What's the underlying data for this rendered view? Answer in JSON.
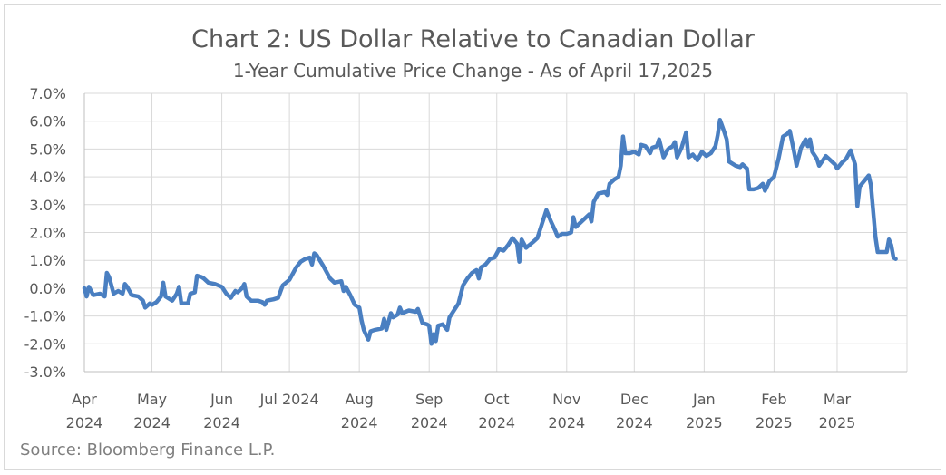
{
  "chart_data": {
    "type": "line",
    "title": "Chart 2: US Dollar Relative to Canadian Dollar",
    "subtitle": "1-Year Cumulative Price Change - As of April 17,2025",
    "source": "Source: Bloomberg Finance L.P.",
    "ylim": [
      -3.0,
      7.0
    ],
    "ytick_values": [
      -3,
      -2,
      -1,
      0,
      1,
      2,
      3,
      4,
      5,
      6,
      7
    ],
    "ytick_labels": [
      "-3.0%",
      "-2.0%",
      "-1.0%",
      "0.0%",
      "1.0%",
      "2.0%",
      "3.0%",
      "4.0%",
      "5.0%",
      "6.0%",
      "7.0%"
    ],
    "xlim": [
      "2024-04-01",
      "2025-04-01"
    ],
    "xticks": [
      {
        "date": "2024-04-01",
        "line1": "Apr",
        "line2": "2024"
      },
      {
        "date": "2024-05-01",
        "line1": "May",
        "line2": "2024"
      },
      {
        "date": "2024-06-01",
        "line1": "Jun",
        "line2": "2024"
      },
      {
        "date": "2024-07-01",
        "line1": "Jul 2024",
        "line2": ""
      },
      {
        "date": "2024-08-01",
        "line1": "Aug",
        "line2": "2024"
      },
      {
        "date": "2024-09-01",
        "line1": "Sep",
        "line2": "2024"
      },
      {
        "date": "2024-10-01",
        "line1": "Oct",
        "line2": "2024"
      },
      {
        "date": "2024-11-01",
        "line1": "Nov",
        "line2": "2024"
      },
      {
        "date": "2024-12-01",
        "line1": "Dec",
        "line2": "2024"
      },
      {
        "date": "2025-01-01",
        "line1": "Jan",
        "line2": "2025"
      },
      {
        "date": "2025-02-01",
        "line1": "Feb",
        "line2": "2025"
      },
      {
        "date": "2025-03-01",
        "line1": "Mar",
        "line2": "2025"
      }
    ],
    "grid": true,
    "series": [
      {
        "color": "#4a7fc1",
        "points": [
          [
            "2024-04-01",
            0.0
          ],
          [
            "2024-04-02",
            -0.3
          ],
          [
            "2024-04-03",
            0.05
          ],
          [
            "2024-04-05",
            -0.25
          ],
          [
            "2024-04-08",
            -0.2
          ],
          [
            "2024-04-10",
            -0.3
          ],
          [
            "2024-04-11",
            0.55
          ],
          [
            "2024-04-12",
            0.4
          ],
          [
            "2024-04-14",
            -0.2
          ],
          [
            "2024-04-16",
            -0.1
          ],
          [
            "2024-04-18",
            -0.2
          ],
          [
            "2024-04-19",
            0.15
          ],
          [
            "2024-04-20",
            0.05
          ],
          [
            "2024-04-22",
            -0.25
          ],
          [
            "2024-04-25",
            -0.3
          ],
          [
            "2024-04-27",
            -0.45
          ],
          [
            "2024-04-28",
            -0.7
          ],
          [
            "2024-04-30",
            -0.55
          ],
          [
            "2024-05-01",
            -0.6
          ],
          [
            "2024-05-03",
            -0.5
          ],
          [
            "2024-05-05",
            -0.3
          ],
          [
            "2024-05-06",
            0.2
          ],
          [
            "2024-05-07",
            -0.3
          ],
          [
            "2024-05-10",
            -0.45
          ],
          [
            "2024-05-12",
            -0.2
          ],
          [
            "2024-05-13",
            0.05
          ],
          [
            "2024-05-14",
            -0.55
          ],
          [
            "2024-05-17",
            -0.55
          ],
          [
            "2024-05-18",
            -0.2
          ],
          [
            "2024-05-20",
            -0.15
          ],
          [
            "2024-05-21",
            0.45
          ],
          [
            "2024-05-23",
            0.4
          ],
          [
            "2024-05-24",
            0.35
          ],
          [
            "2024-05-26",
            0.2
          ],
          [
            "2024-05-29",
            0.15
          ],
          [
            "2024-06-01",
            0.05
          ],
          [
            "2024-06-03",
            -0.2
          ],
          [
            "2024-06-05",
            -0.35
          ],
          [
            "2024-06-07",
            -0.1
          ],
          [
            "2024-06-08",
            -0.15
          ],
          [
            "2024-06-10",
            0.0
          ],
          [
            "2024-06-11",
            0.15
          ],
          [
            "2024-06-12",
            -0.3
          ],
          [
            "2024-06-14",
            -0.45
          ],
          [
            "2024-06-17",
            -0.45
          ],
          [
            "2024-06-19",
            -0.5
          ],
          [
            "2024-06-20",
            -0.6
          ],
          [
            "2024-06-21",
            -0.45
          ],
          [
            "2024-06-24",
            -0.4
          ],
          [
            "2024-06-26",
            -0.35
          ],
          [
            "2024-06-28",
            0.1
          ],
          [
            "2024-07-01",
            0.3
          ],
          [
            "2024-07-04",
            0.75
          ],
          [
            "2024-07-06",
            0.95
          ],
          [
            "2024-07-08",
            1.05
          ],
          [
            "2024-07-10",
            1.1
          ],
          [
            "2024-07-11",
            0.85
          ],
          [
            "2024-07-12",
            1.25
          ],
          [
            "2024-07-13",
            1.2
          ],
          [
            "2024-07-16",
            0.8
          ],
          [
            "2024-07-19",
            0.35
          ],
          [
            "2024-07-21",
            0.2
          ],
          [
            "2024-07-24",
            0.25
          ],
          [
            "2024-07-25",
            -0.1
          ],
          [
            "2024-07-26",
            0.05
          ],
          [
            "2024-07-28",
            -0.25
          ],
          [
            "2024-07-30",
            -0.6
          ],
          [
            "2024-08-01",
            -0.7
          ],
          [
            "2024-08-02",
            -1.15
          ],
          [
            "2024-08-03",
            -1.5
          ],
          [
            "2024-08-05",
            -1.85
          ],
          [
            "2024-08-06",
            -1.55
          ],
          [
            "2024-08-08",
            -1.5
          ],
          [
            "2024-08-11",
            -1.45
          ],
          [
            "2024-08-12",
            -1.1
          ],
          [
            "2024-08-13",
            -1.5
          ],
          [
            "2024-08-15",
            -0.9
          ],
          [
            "2024-08-16",
            -1.05
          ],
          [
            "2024-08-18",
            -0.95
          ],
          [
            "2024-08-19",
            -0.7
          ],
          [
            "2024-08-20",
            -0.9
          ],
          [
            "2024-08-23",
            -0.8
          ],
          [
            "2024-08-26",
            -0.85
          ],
          [
            "2024-08-27",
            -0.75
          ],
          [
            "2024-08-29",
            -1.25
          ],
          [
            "2024-08-31",
            -1.3
          ],
          [
            "2024-09-01",
            -1.35
          ],
          [
            "2024-09-02",
            -2.0
          ],
          [
            "2024-09-03",
            -1.65
          ],
          [
            "2024-09-04",
            -1.9
          ],
          [
            "2024-09-05",
            -1.35
          ],
          [
            "2024-09-07",
            -1.3
          ],
          [
            "2024-09-09",
            -1.5
          ],
          [
            "2024-09-10",
            -1.05
          ],
          [
            "2024-09-12",
            -0.8
          ],
          [
            "2024-09-14",
            -0.55
          ],
          [
            "2024-09-16",
            0.1
          ],
          [
            "2024-09-18",
            0.35
          ],
          [
            "2024-09-20",
            0.55
          ],
          [
            "2024-09-22",
            0.65
          ],
          [
            "2024-09-23",
            0.35
          ],
          [
            "2024-09-24",
            0.75
          ],
          [
            "2024-09-26",
            0.85
          ],
          [
            "2024-09-28",
            1.05
          ],
          [
            "2024-09-30",
            1.1
          ],
          [
            "2024-10-02",
            1.4
          ],
          [
            "2024-10-04",
            1.35
          ],
          [
            "2024-10-06",
            1.55
          ],
          [
            "2024-10-08",
            1.8
          ],
          [
            "2024-10-10",
            1.6
          ],
          [
            "2024-10-11",
            0.95
          ],
          [
            "2024-10-12",
            1.75
          ],
          [
            "2024-10-14",
            1.45
          ],
          [
            "2024-10-17",
            1.65
          ],
          [
            "2024-10-19",
            1.8
          ],
          [
            "2024-10-21",
            2.3
          ],
          [
            "2024-10-23",
            2.8
          ],
          [
            "2024-10-25",
            2.4
          ],
          [
            "2024-10-27",
            2.05
          ],
          [
            "2024-10-28",
            1.85
          ],
          [
            "2024-10-30",
            1.95
          ],
          [
            "2024-11-01",
            1.95
          ],
          [
            "2024-11-03",
            2.0
          ],
          [
            "2024-11-04",
            2.55
          ],
          [
            "2024-11-05",
            2.2
          ],
          [
            "2024-11-07",
            2.35
          ],
          [
            "2024-11-09",
            2.5
          ],
          [
            "2024-11-11",
            2.65
          ],
          [
            "2024-11-12",
            2.4
          ],
          [
            "2024-11-13",
            3.1
          ],
          [
            "2024-11-15",
            3.4
          ],
          [
            "2024-11-18",
            3.45
          ],
          [
            "2024-11-19",
            3.35
          ],
          [
            "2024-11-20",
            3.75
          ],
          [
            "2024-11-22",
            3.9
          ],
          [
            "2024-11-24",
            4.0
          ],
          [
            "2024-11-25",
            4.4
          ],
          [
            "2024-11-26",
            5.45
          ],
          [
            "2024-11-27",
            4.85
          ],
          [
            "2024-11-29",
            4.85
          ],
          [
            "2024-12-01",
            4.9
          ],
          [
            "2024-12-03",
            4.8
          ],
          [
            "2024-12-04",
            5.15
          ],
          [
            "2024-12-06",
            5.1
          ],
          [
            "2024-12-08",
            4.85
          ],
          [
            "2024-12-09",
            5.05
          ],
          [
            "2024-12-11",
            5.1
          ],
          [
            "2024-12-12",
            5.35
          ],
          [
            "2024-12-14",
            4.7
          ],
          [
            "2024-12-16",
            5.0
          ],
          [
            "2024-12-18",
            5.1
          ],
          [
            "2024-12-19",
            5.25
          ],
          [
            "2024-12-20",
            4.7
          ],
          [
            "2024-12-22",
            5.05
          ],
          [
            "2024-12-24",
            5.6
          ],
          [
            "2024-12-25",
            4.7
          ],
          [
            "2024-12-27",
            4.8
          ],
          [
            "2024-12-29",
            4.6
          ],
          [
            "2024-12-31",
            4.9
          ],
          [
            "2025-01-02",
            4.75
          ],
          [
            "2025-01-04",
            4.85
          ],
          [
            "2025-01-06",
            5.1
          ],
          [
            "2025-01-07",
            5.5
          ],
          [
            "2025-01-08",
            6.05
          ],
          [
            "2025-01-10",
            5.6
          ],
          [
            "2025-01-11",
            5.35
          ],
          [
            "2025-01-12",
            4.55
          ],
          [
            "2025-01-14",
            4.45
          ],
          [
            "2025-01-15",
            4.4
          ],
          [
            "2025-01-17",
            4.35
          ],
          [
            "2025-01-18",
            4.45
          ],
          [
            "2025-01-20",
            4.3
          ],
          [
            "2025-01-21",
            3.55
          ],
          [
            "2025-01-23",
            3.55
          ],
          [
            "2025-01-25",
            3.6
          ],
          [
            "2025-01-27",
            3.75
          ],
          [
            "2025-01-28",
            3.5
          ],
          [
            "2025-01-30",
            3.85
          ],
          [
            "2025-02-01",
            4.0
          ],
          [
            "2025-02-03",
            4.65
          ],
          [
            "2025-02-05",
            5.45
          ],
          [
            "2025-02-07",
            5.55
          ],
          [
            "2025-02-08",
            5.65
          ],
          [
            "2025-02-10",
            4.85
          ],
          [
            "2025-02-11",
            4.4
          ],
          [
            "2025-02-13",
            5.05
          ],
          [
            "2025-02-15",
            5.35
          ],
          [
            "2025-02-16",
            5.1
          ],
          [
            "2025-02-17",
            5.35
          ],
          [
            "2025-02-18",
            4.9
          ],
          [
            "2025-02-20",
            4.65
          ],
          [
            "2025-02-21",
            4.4
          ],
          [
            "2025-02-24",
            4.75
          ],
          [
            "2025-02-26",
            4.6
          ],
          [
            "2025-02-28",
            4.45
          ],
          [
            "2025-03-01",
            4.3
          ],
          [
            "2025-03-03",
            4.5
          ],
          [
            "2025-03-05",
            4.65
          ],
          [
            "2025-03-07",
            4.95
          ],
          [
            "2025-03-09",
            4.45
          ],
          [
            "2025-03-10",
            2.95
          ],
          [
            "2025-03-11",
            3.65
          ],
          [
            "2025-03-13",
            3.85
          ],
          [
            "2025-03-15",
            4.05
          ],
          [
            "2025-03-16",
            3.7
          ],
          [
            "2025-03-18",
            1.85
          ],
          [
            "2025-03-19",
            1.3
          ],
          [
            "2025-03-21",
            1.3
          ],
          [
            "2025-03-23",
            1.3
          ],
          [
            "2025-03-24",
            1.75
          ],
          [
            "2025-03-25",
            1.55
          ],
          [
            "2025-03-26",
            1.1
          ],
          [
            "2025-03-27",
            1.05
          ]
        ]
      }
    ]
  }
}
